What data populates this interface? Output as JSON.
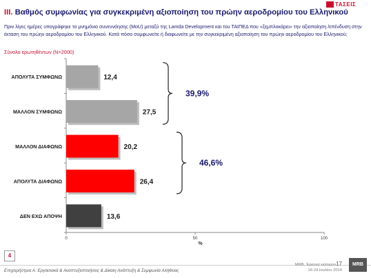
{
  "logo": {
    "text": "ΤΑΣΕΙΣ"
  },
  "header": {
    "roman": "III.",
    "title": "Βαθμός συμφωνίας για συγκεκριμένη αξιοποίηση του πρώην αεροδρομίου του Ελληνικού",
    "question": "Πριν λίγες ημέρες υπογράφηκε το μνημόνιο συνεννόησης (ΜoU) μεταξύ της Lamda Development και του ΤΑΙΠΕΔ που «ξεμπλοκάρει» την αξιοποίηση /επένδυση στην έκταση του πρώην αεροδρομίου του Ελληνικού. Κατά πόσο συμφωνείτε ή διαφωνείτε με την  συγκεκριμένη αξιοποίηση του πρώην αεροδρομίου του Ελληνικού;",
    "base": "Σύνολο ερωτηθέντων (Ν=2000)"
  },
  "chart_data": {
    "type": "bar",
    "orientation": "horizontal",
    "categories": [
      "ΑΠΟΛΥΤΑ ΣΥΜΦΩΝΩ",
      "ΜΑΛΛΟΝ ΣΥΜΦΩΝΩ",
      "ΜΑΛΛΟΝ ΔΙΑΦΩΝΩ",
      "ΑΠΟΛΥΤΑ ΔΙΑΦΩΝΩ",
      "ΔΕΝ ΕΧΩ ΑΠΟΨΗ"
    ],
    "values": [
      12.4,
      27.5,
      20.2,
      26.4,
      13.6
    ],
    "value_labels": [
      "12,4",
      "27,5",
      "20,2",
      "26,4",
      "13,6"
    ],
    "colors": [
      "#a6a6a6",
      "#a6a6a6",
      "#ff0000",
      "#ff0000",
      "#404040"
    ],
    "xlim": [
      0,
      100
    ],
    "xticks": [
      "0",
      "50",
      "100"
    ],
    "xlabel": "%",
    "ylabel": "",
    "grid": false,
    "groups": [
      {
        "label": "39,9%",
        "from": 0,
        "to": 1
      },
      {
        "label": "46,6%",
        "from": 2,
        "to": 3
      }
    ]
  },
  "footer": {
    "page_number": "4",
    "left_text": "Επιχειρήστρια Α: Εργασιακά & Αναπτυξιοποιήσεις & Δίκαιη Ανάπτυξη & Συμφωνία Αλήθειας",
    "right_line1": "MRB, Έρευνα εκλογών",
    "right_number": "17",
    "right_line2": "16-24 Ιουλίου 2014",
    "mrb_logo": "MRB"
  }
}
